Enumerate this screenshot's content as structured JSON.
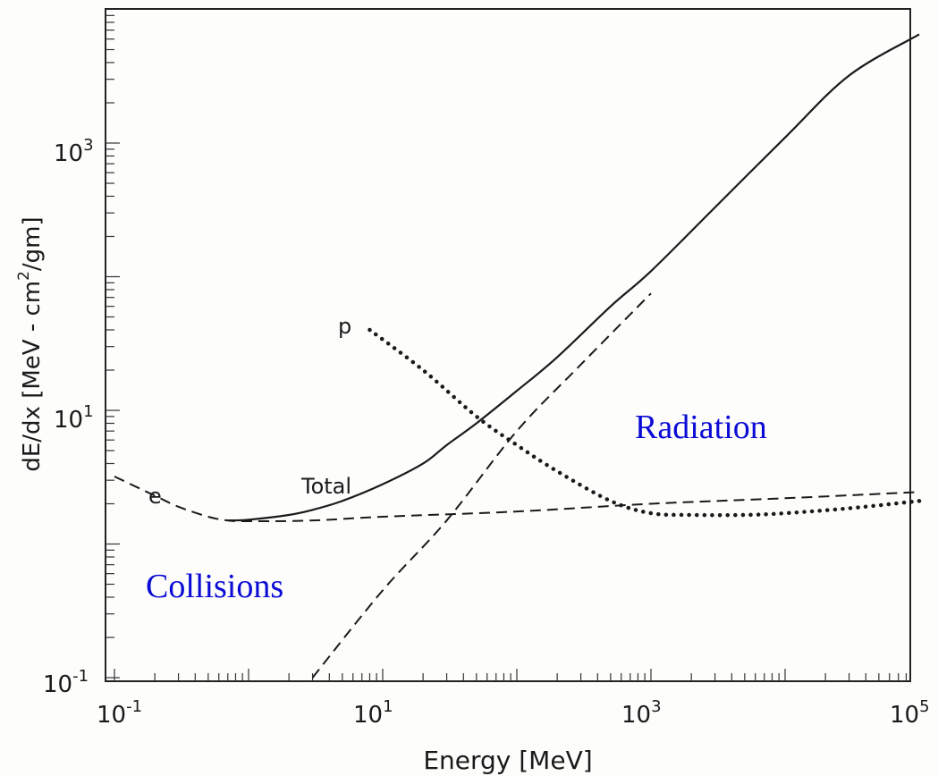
{
  "chart_data": {
    "type": "line",
    "xlabel": "Energy [MeV]",
    "ylabel_main": "dE/dx [MeV - cm",
    "ylabel_sup": "2",
    "ylabel_tail": "/gm]",
    "xscale": "log",
    "yscale": "log",
    "xlim": [
      0.1,
      100000
    ],
    "ylim": [
      0.1,
      8000
    ],
    "x_ticks": [
      {
        "base": "10",
        "exp": "-1"
      },
      {
        "base": "10",
        "exp": "1"
      },
      {
        "base": "10",
        "exp": "3"
      },
      {
        "base": "10",
        "exp": "5"
      }
    ],
    "y_ticks": [
      {
        "base": "10",
        "exp": "-1"
      },
      {
        "base": "10",
        "exp": "1"
      },
      {
        "base": "10",
        "exp": "3"
      }
    ],
    "grid": false,
    "series": [
      {
        "name": "Total",
        "style": "solid",
        "x": [
          0.7,
          1,
          2,
          3,
          5,
          10,
          20,
          30,
          50,
          100,
          200,
          500,
          1000,
          3000,
          10000,
          30000,
          100000
        ],
        "y": [
          1.5,
          1.52,
          1.65,
          1.8,
          2.1,
          2.8,
          4.0,
          5.5,
          8.0,
          14.0,
          25.0,
          60.0,
          110.0,
          330.0,
          1100.0,
          3200.0,
          6500.0
        ]
      },
      {
        "name": "Collisions",
        "style": "dashed",
        "x": [
          0.1,
          0.2,
          0.3,
          0.5,
          0.7,
          1,
          3,
          10,
          100,
          1000,
          10000,
          100000
        ],
        "y": [
          3.2,
          2.3,
          1.9,
          1.6,
          1.5,
          1.48,
          1.5,
          1.6,
          1.75,
          2.0,
          2.2,
          2.45
        ]
      },
      {
        "name": "Radiation",
        "style": "dashed",
        "x": [
          3,
          10,
          30,
          100,
          300,
          1000
        ],
        "y": [
          0.1,
          0.45,
          1.5,
          7.0,
          22.0,
          75.0
        ]
      },
      {
        "name": "p",
        "style": "dotted",
        "x": [
          8,
          20,
          50,
          100,
          200,
          500,
          1000,
          2000,
          5000,
          10000,
          30000,
          100000
        ],
        "y": [
          40.0,
          20.0,
          9.0,
          5.5,
          3.5,
          2.1,
          1.7,
          1.65,
          1.65,
          1.7,
          1.85,
          2.1
        ]
      }
    ],
    "annotations": [
      {
        "text": "e",
        "style": "plain"
      },
      {
        "text": "p",
        "style": "plain"
      },
      {
        "text": "Total",
        "style": "plain"
      },
      {
        "text": "Radiation",
        "style": "blue",
        "color": "#0b0bd6"
      },
      {
        "text": "Collisions",
        "style": "blue",
        "color": "#0b0bd6"
      }
    ]
  }
}
